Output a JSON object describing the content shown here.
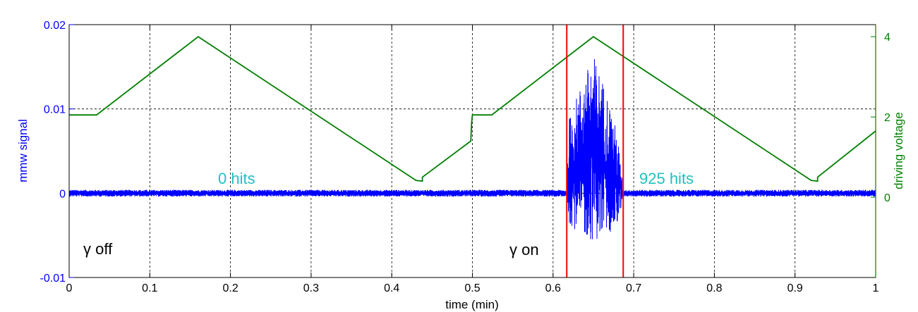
{
  "chart_data": {
    "type": "line",
    "xlabel": "time (min)",
    "ylabel_left": "mmw signal",
    "ylabel_right": "driving voltage",
    "xlim": [
      0,
      1
    ],
    "ylim_left": [
      -0.01,
      0.02
    ],
    "ylim_right": [
      -2,
      4.3
    ],
    "grid": true,
    "x_ticks": [
      "0",
      "0.1",
      "0.2",
      "0.3",
      "0.4",
      "0.5",
      "0.6",
      "0.7",
      "0.8",
      "0.9",
      "1"
    ],
    "x_tick_values": [
      0,
      0.1,
      0.2,
      0.3,
      0.4,
      0.5,
      0.6,
      0.7,
      0.8,
      0.9,
      1
    ],
    "y_left_ticks": [
      "0.02",
      "0.01",
      "0",
      "-0.01"
    ],
    "y_left_tick_values": [
      0.02,
      0.01,
      0,
      -0.01
    ],
    "y_right_ticks": [
      "4",
      "2",
      "0"
    ],
    "y_right_tick_values": [
      4,
      2,
      0
    ],
    "colors": {
      "mmw": "#0000ff",
      "driving": "#007f00",
      "markers": "#ff0000",
      "annotation": "#1fc1c1"
    },
    "series": [
      {
        "axis": "right",
        "x": [
          0,
          0.034,
          0.16,
          0.43,
          0.438,
          0.438,
          0.498,
          0.499,
          0.5,
          0.524,
          0.65,
          0.92,
          0.928,
          0.928,
          1.0
        ],
        "y": [
          2.05,
          2.05,
          4.0,
          0.42,
          0.4,
          0.5,
          1.4,
          1.85,
          2.05,
          2.05,
          4.0,
          0.42,
          0.4,
          0.5,
          1.65
        ]
      },
      {
        "axis": "left",
        "x": [
          0,
          0.617,
          0.62,
          0.635,
          0.65,
          0.665,
          0.68,
          0.687,
          1.0
        ],
        "y_max": [
          0.0004,
          0.0004,
          0.009,
          0.013,
          0.0165,
          0.0125,
          0.007,
          0.0004,
          0.0004
        ],
        "y_min": [
          -0.0004,
          -0.0004,
          -0.0035,
          -0.0052,
          -0.0057,
          -0.0052,
          -0.004,
          -0.0004,
          -0.0004
        ]
      }
    ],
    "vertical_markers": [
      0.617,
      0.687
    ],
    "annotations": {
      "hits_left": "0 hits",
      "hits_right": "925 hits",
      "gamma_off": "γ off",
      "gamma_on": "γ on"
    }
  }
}
